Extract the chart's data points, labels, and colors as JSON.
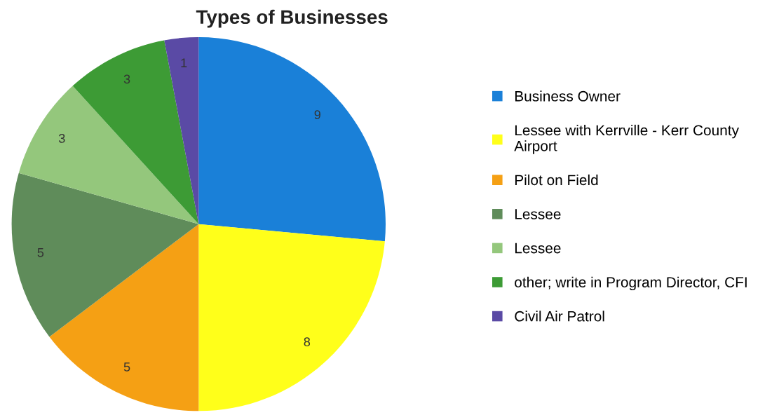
{
  "chart_data": {
    "type": "pie",
    "title": "Types of Businesses",
    "categories": [
      "Business Owner",
      "Lessee with Kerrville - Kerr County Airport",
      "Pilot on Field",
      "Lessee",
      "Lessee",
      "other; write in Program Director, CFI",
      "Civil Air Patrol"
    ],
    "values": [
      9,
      8,
      5,
      5,
      3,
      3,
      1
    ],
    "colors": [
      "#1a80d8",
      "#ffff1a",
      "#f5a014",
      "#5f8c5a",
      "#94c77c",
      "#3d9b35",
      "#5a4aa5"
    ],
    "data_labels": true,
    "legend": "right"
  }
}
